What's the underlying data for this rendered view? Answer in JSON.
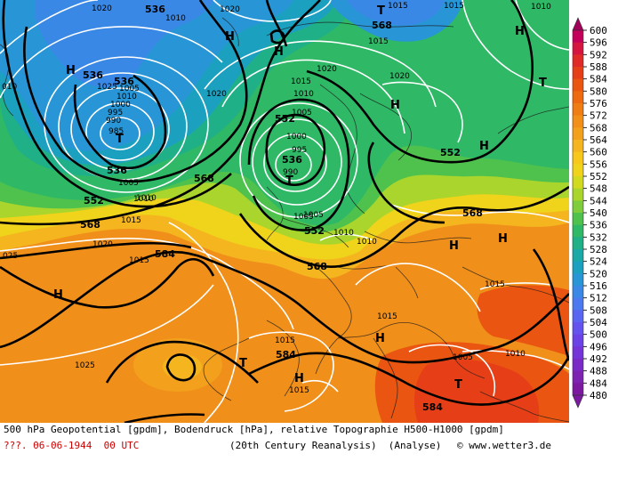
{
  "map": {
    "pressure_centers": [
      {
        "symbol": "T",
        "kind": "low"
      },
      {
        "symbol": "T",
        "kind": "low"
      },
      {
        "symbol": "T",
        "kind": "low"
      },
      {
        "symbol": "T",
        "kind": "low"
      },
      {
        "symbol": "T",
        "kind": "low"
      },
      {
        "symbol": "T",
        "kind": "low"
      },
      {
        "symbol": "H",
        "kind": "high"
      },
      {
        "symbol": "H",
        "kind": "high"
      },
      {
        "symbol": "H",
        "kind": "high"
      },
      {
        "symbol": "H",
        "kind": "high"
      },
      {
        "symbol": "H",
        "kind": "high"
      },
      {
        "symbol": "H",
        "kind": "high"
      },
      {
        "symbol": "H",
        "kind": "high"
      },
      {
        "symbol": "H",
        "kind": "high"
      },
      {
        "symbol": "H",
        "kind": "high"
      },
      {
        "symbol": "H",
        "kind": "high"
      },
      {
        "symbol": "H",
        "kind": "high"
      }
    ],
    "geopotential_labels": [
      "536",
      "536",
      "536",
      "536",
      "536",
      "552",
      "552",
      "552",
      "552",
      "568",
      "568",
      "568",
      "568",
      "568",
      "584",
      "584",
      "584"
    ],
    "pressure_labels": [
      "1010",
      "1020",
      "1015",
      "1020",
      "1020",
      "1015",
      "1010",
      "1005",
      "1000",
      "995",
      "990",
      "985",
      "1005",
      "1010",
      "1015",
      "1020",
      "1025",
      "1020",
      "1015",
      "1010",
      "1005",
      "1000",
      "995",
      "990",
      "1005",
      "1010",
      "1010",
      "1015",
      "1015",
      "1015",
      "1015",
      "1025",
      "1020",
      "1015",
      "1010",
      "1005",
      "1010",
      "1015",
      "1005",
      "1010",
      "025",
      "010"
    ],
    "colors": {
      "geopotential_contour": "#000000",
      "isobar": "#ffffff",
      "coastline": "#1a1a1a",
      "low_field": "#2aa9e6",
      "high_field": "#e8711a"
    }
  },
  "legend": {
    "values": [
      "600",
      "596",
      "592",
      "588",
      "584",
      "580",
      "576",
      "572",
      "568",
      "564",
      "560",
      "556",
      "552",
      "548",
      "544",
      "540",
      "536",
      "532",
      "528",
      "524",
      "520",
      "516",
      "512",
      "508",
      "504",
      "500",
      "496",
      "492",
      "488",
      "484",
      "480"
    ],
    "colors": [
      "#a3005a",
      "#c4005a",
      "#d61440",
      "#e02a28",
      "#e63f17",
      "#ea5611",
      "#ed6a10",
      "#ef7d13",
      "#f18f18",
      "#f3a11c",
      "#f5b51f",
      "#f7c71c",
      "#efd41b",
      "#d2da1f",
      "#a9d52c",
      "#7fcd3c",
      "#4fc24d",
      "#2fb866",
      "#1fb088",
      "#1aa9a6",
      "#1ca0c0",
      "#2896d6",
      "#3a88e6",
      "#4c79ef",
      "#5a66f2",
      "#6453ef",
      "#6b42e6",
      "#7434d8",
      "#7a2ac6",
      "#7e22b2",
      "#7b1aa0"
    ]
  },
  "caption": {
    "line1": "500 hPa Geopotential [gpdm], Bodendruck [hPa], relative Topographie H500-H1000 [gpdm]",
    "date": "???. 06-06-1944  00 UTC",
    "source": "(20th Century Reanalysis)  (Analyse)",
    "credit": "© www.wetter3.de"
  }
}
